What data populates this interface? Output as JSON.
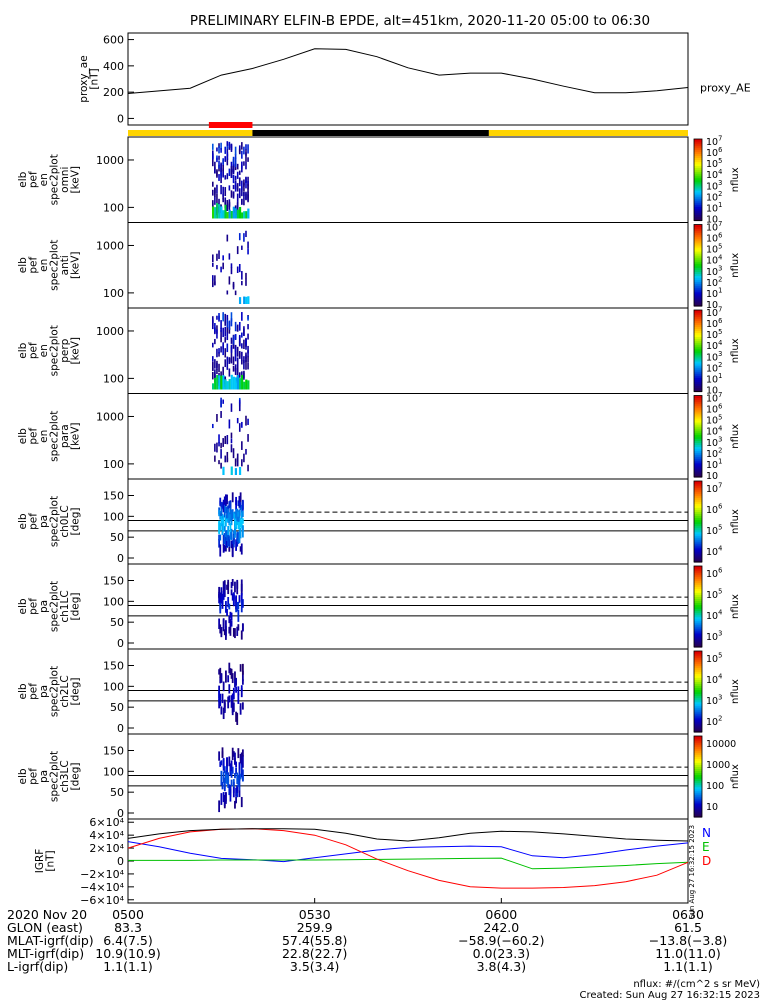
{
  "title": "PRELIMINARY ELFIN-B EPDE, alt=451km, 2020-11-20 05:00 to 06:30",
  "chart_data": {
    "type": "spectrogram-stack",
    "time_range": [
      "2020-11-20 05:00",
      "2020-11-20 06:30"
    ],
    "ae_panel": {
      "ylabel": [
        "proxy_ae",
        "[nT]"
      ],
      "yticks": [
        0,
        200,
        400,
        600
      ],
      "ylim": [
        -50,
        650
      ],
      "series_label": "proxy_AE",
      "x_minutes": [
        0,
        10,
        15,
        20,
        25,
        30,
        35,
        40,
        45,
        50,
        55,
        60,
        65,
        70,
        75,
        80,
        85,
        90
      ],
      "values": [
        190,
        230,
        330,
        380,
        450,
        530,
        525,
        470,
        385,
        330,
        345,
        345,
        300,
        245,
        195,
        195,
        210,
        235
      ]
    },
    "status_bar": [
      {
        "from": 0,
        "to": 20,
        "color": "#ffd400"
      },
      {
        "from": 20,
        "to": 58,
        "color": "#000000"
      },
      {
        "from": 58,
        "to": 90,
        "color": "#ffd400"
      }
    ],
    "science_zone_marker": {
      "from": 13,
      "to": 20,
      "color": "#ff0000"
    },
    "energy_panels": [
      {
        "ylabel": [
          "elb",
          "pef",
          "en",
          "spec2plot",
          "omni",
          "[keV]"
        ],
        "yticks": [
          100,
          1000
        ],
        "intensity": 1.0
      },
      {
        "ylabel": [
          "elb",
          "pef",
          "en",
          "spec2plot",
          "anti",
          "[keV]"
        ],
        "yticks": [
          100,
          1000
        ],
        "intensity": 0.25
      },
      {
        "ylabel": [
          "elb",
          "pef",
          "en",
          "spec2plot",
          "perp",
          "[keV]"
        ],
        "yticks": [
          100,
          1000
        ],
        "intensity": 0.9
      },
      {
        "ylabel": [
          "elb",
          "pef",
          "en",
          "spec2plot",
          "para",
          "[keV]"
        ],
        "yticks": [
          100,
          1000
        ],
        "intensity": 0.3
      }
    ],
    "energy_colorbar": {
      "labels": [
        "10",
        "10^1",
        "10^2",
        "10^3",
        "10^4",
        "10^5",
        "10^6",
        "10^7"
      ],
      "unit": "nflux"
    },
    "pitch_panels": [
      {
        "ylabel": [
          "elb",
          "pef",
          "pa",
          "spec2plot",
          "ch0LC",
          "[deg]"
        ],
        "yticks": [
          0,
          50,
          100,
          150
        ],
        "intensity": 1.0,
        "colorbar": [
          "10^4",
          "10^5",
          "10^6",
          "10^7"
        ]
      },
      {
        "ylabel": [
          "elb",
          "pef",
          "pa",
          "spec2plot",
          "ch1LC",
          "[deg]"
        ],
        "yticks": [
          0,
          50,
          100,
          150
        ],
        "intensity": 0.5,
        "colorbar": [
          "10^3",
          "10^4",
          "10^5",
          "10^6"
        ]
      },
      {
        "ylabel": [
          "elb",
          "pef",
          "pa",
          "spec2plot",
          "ch2LC",
          "[deg]"
        ],
        "yticks": [
          0,
          50,
          100,
          150
        ],
        "intensity": 0.35,
        "colorbar": [
          "10^2",
          "10^3",
          "10^4",
          "10^5"
        ]
      },
      {
        "ylabel": [
          "elb",
          "pef",
          "pa",
          "spec2plot",
          "ch3LC",
          "[deg]"
        ],
        "yticks": [
          0,
          50,
          100,
          150
        ],
        "intensity": 0.6,
        "colorbar": [
          "10",
          "100",
          "1000",
          "10000"
        ]
      }
    ],
    "pitch_colorbar_unit": "nflux",
    "igrf_panel": {
      "ylabel": [
        "IGRF",
        "[nT]"
      ],
      "ytick_labels": [
        "6×10⁴",
        "4×10⁴",
        "2×10⁴",
        "0",
        "−2×10⁴",
        "−4×10⁴",
        "−6×10⁴"
      ],
      "yticks": [
        60000,
        40000,
        20000,
        0,
        -20000,
        -40000,
        -60000
      ],
      "ylim": [
        -65000,
        65000
      ],
      "legend": [
        "N",
        "E",
        "D"
      ],
      "x_minutes": [
        0,
        5,
        10,
        15,
        20,
        25,
        30,
        35,
        40,
        45,
        50,
        55,
        60,
        65,
        70,
        75,
        80,
        85,
        90
      ],
      "series": [
        {
          "name": "N",
          "color": "#0000ff",
          "values": [
            30000,
            22000,
            12000,
            4000,
            2000,
            -1000,
            5000,
            11000,
            17000,
            21000,
            22000,
            23000,
            22000,
            8000,
            5000,
            10000,
            17000,
            23000,
            28000
          ]
        },
        {
          "name": "E",
          "color": "#00c000",
          "values": [
            1000,
            1000,
            1000,
            1500,
            1500,
            1500,
            1500,
            2000,
            2500,
            3000,
            3500,
            4000,
            4500,
            -12000,
            -11000,
            -9000,
            -7000,
            -4000,
            -2000
          ]
        },
        {
          "name": "D",
          "color": "#ff0000",
          "values": [
            20000,
            35000,
            45000,
            49000,
            50000,
            47000,
            40000,
            25000,
            3000,
            -15000,
            -30000,
            -40000,
            -42000,
            -42000,
            -41000,
            -38000,
            -32000,
            -22000,
            -2000
          ]
        },
        {
          "name": "total",
          "color": "#000000",
          "values": [
            35000,
            42000,
            47000,
            49000,
            50000,
            50000,
            49000,
            43000,
            34000,
            31000,
            36000,
            43000,
            46000,
            45000,
            42000,
            38000,
            34000,
            32000,
            31000
          ]
        }
      ]
    },
    "x_axis": {
      "rows": [
        [
          "2020 Nov 20",
          "0500",
          "0530",
          "0600",
          "0630"
        ],
        [
          "GLON (east)",
          "83.3",
          "259.9",
          "242.0",
          "61.5"
        ],
        [
          "MLAT-igrf(dip)",
          "6.4(7.5)",
          "57.4(55.8)",
          "−58.9(−60.2)",
          "−13.8(−3.8)"
        ],
        [
          "MLT-igrf(dip)",
          "10.9(10.9)",
          "22.8(22.7)",
          "0.0(23.3)",
          "11.0(11.0)"
        ],
        [
          "L-igrf(dip)",
          "1.1(1.1)",
          "3.5(3.4)",
          "3.8(4.3)",
          "1.1(1.1)"
        ]
      ]
    }
  },
  "footer": {
    "units": "nflux: #/(cm^2 s sr MeV)",
    "created": "Created: Sun Aug 27 16:32:15 2023",
    "side_stamp": "Sun Aug 27 16:32:15 2023"
  }
}
